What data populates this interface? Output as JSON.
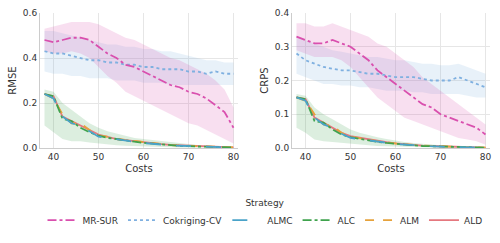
{
  "chart_data": [
    {
      "type": "line",
      "x_label": "Costs",
      "y_label": "RMSE",
      "legend": "bottom",
      "legend_title": "Strategy",
      "grid": true,
      "x": [
        38,
        40,
        42,
        44,
        46,
        48,
        50,
        52,
        54,
        56,
        58,
        60,
        62,
        64,
        66,
        68,
        70,
        72,
        74,
        76,
        78,
        80
      ],
      "xlim": [
        37,
        81
      ],
      "xticks": [
        40,
        50,
        60,
        70,
        80
      ],
      "ylim": [
        0,
        0.6
      ],
      "yticks": [
        {
          "value": 0,
          "label": "0.0"
        },
        0.2,
        0.4,
        0.6
      ],
      "series": [
        {
          "name": "ALD",
          "color": "#e5787f",
          "line_style": "solid",
          "values": [
            0.24,
            0.23,
            0.14,
            0.12,
            0.1,
            0.08,
            0.06,
            0.05,
            0.04,
            0.035,
            0.03,
            0.025,
            0.02,
            0.017,
            0.014,
            0.012,
            0.01,
            0.008,
            0.006,
            0.005,
            0.004,
            0.003
          ]
        },
        {
          "name": "ALM",
          "color": "#e6a23c",
          "line_style": "dash",
          "values": [
            0.24,
            0.22,
            0.15,
            0.11,
            0.11,
            0.08,
            0.055,
            0.05,
            0.04,
            0.035,
            0.03,
            0.025,
            0.02,
            0.016,
            0.013,
            0.011,
            0.009,
            0.007,
            0.006,
            0.005,
            0.004,
            0.003
          ]
        },
        {
          "name": "ALC",
          "color": "#3fa34d",
          "line_style": "dashdot",
          "values": [
            0.24,
            0.23,
            0.13,
            0.12,
            0.09,
            0.07,
            0.055,
            0.045,
            0.04,
            0.033,
            0.028,
            0.023,
            0.019,
            0.015,
            0.012,
            0.01,
            0.008,
            0.007,
            0.005,
            0.004,
            0.003,
            0.002
          ],
          "lower": [
            0.1,
            0.07,
            0.04,
            0.03,
            0.03,
            0.025,
            0.02,
            0.015,
            0.012,
            0.01,
            0.008,
            0.006,
            0.005,
            0.004,
            0.003,
            0.002,
            0.002,
            0.001,
            0.001,
            0.001,
            0.0,
            0.0
          ],
          "upper": [
            0.26,
            0.25,
            0.2,
            0.17,
            0.14,
            0.11,
            0.09,
            0.075,
            0.065,
            0.055,
            0.045,
            0.04,
            0.035,
            0.03,
            0.025,
            0.02,
            0.016,
            0.013,
            0.01,
            0.008,
            0.006,
            0.005
          ]
        },
        {
          "name": "ALMC",
          "color": "#4aa3c9",
          "line_style": "longdash",
          "values": [
            0.24,
            0.22,
            0.14,
            0.11,
            0.1,
            0.075,
            0.05,
            0.045,
            0.038,
            0.032,
            0.027,
            0.022,
            0.018,
            0.015,
            0.012,
            0.01,
            0.008,
            0.006,
            0.005,
            0.004,
            0.003,
            0.002
          ]
        },
        {
          "name": "Cokriging-CV",
          "color": "#7fb0e0",
          "line_style": "dot",
          "values": [
            0.43,
            0.42,
            0.42,
            0.41,
            0.4,
            0.39,
            0.39,
            0.38,
            0.38,
            0.37,
            0.37,
            0.36,
            0.36,
            0.35,
            0.35,
            0.35,
            0.34,
            0.34,
            0.33,
            0.34,
            0.33,
            0.33
          ],
          "lower": [
            0.34,
            0.33,
            0.33,
            0.32,
            0.32,
            0.31,
            0.31,
            0.31,
            0.3,
            0.3,
            0.3,
            0.29,
            0.29,
            0.29,
            0.28,
            0.28,
            0.28,
            0.28,
            0.28,
            0.28,
            0.28,
            0.28
          ],
          "upper": [
            0.52,
            0.52,
            0.51,
            0.5,
            0.49,
            0.48,
            0.47,
            0.46,
            0.46,
            0.45,
            0.45,
            0.44,
            0.44,
            0.43,
            0.43,
            0.42,
            0.41,
            0.4,
            0.39,
            0.39,
            0.38,
            0.38
          ]
        },
        {
          "name": "MR-SUR",
          "color": "#d94fae",
          "line_style": "dashdot",
          "values": [
            0.48,
            0.47,
            0.48,
            0.49,
            0.49,
            0.48,
            0.45,
            0.42,
            0.4,
            0.37,
            0.36,
            0.34,
            0.32,
            0.3,
            0.28,
            0.27,
            0.25,
            0.24,
            0.22,
            0.19,
            0.16,
            0.09
          ],
          "lower": [
            0.43,
            0.42,
            0.42,
            0.43,
            0.42,
            0.4,
            0.36,
            0.32,
            0.29,
            0.25,
            0.23,
            0.21,
            0.19,
            0.17,
            0.15,
            0.13,
            0.11,
            0.1,
            0.08,
            0.06,
            0.04,
            0.02
          ],
          "upper": [
            0.53,
            0.54,
            0.55,
            0.56,
            0.56,
            0.56,
            0.55,
            0.53,
            0.51,
            0.49,
            0.48,
            0.46,
            0.44,
            0.42,
            0.4,
            0.39,
            0.37,
            0.35,
            0.33,
            0.3,
            0.26,
            0.18
          ]
        }
      ]
    },
    {
      "type": "line",
      "x_label": "Costs",
      "y_label": "CRPS",
      "grid": true,
      "x": [
        38,
        40,
        42,
        44,
        46,
        48,
        50,
        52,
        54,
        56,
        58,
        60,
        62,
        64,
        66,
        68,
        70,
        72,
        74,
        76,
        78,
        80
      ],
      "xlim": [
        37,
        81
      ],
      "xticks": [
        40,
        50,
        60,
        70,
        80
      ],
      "ylim": [
        0,
        0.4
      ],
      "yticks": [
        {
          "value": 0,
          "label": "0.0"
        },
        0.1,
        0.2,
        0.3,
        0.4
      ],
      "series": [
        {
          "name": "ALD",
          "color": "#e5787f",
          "line_style": "solid",
          "values": [
            0.15,
            0.145,
            0.09,
            0.075,
            0.06,
            0.045,
            0.035,
            0.03,
            0.025,
            0.02,
            0.017,
            0.014,
            0.011,
            0.009,
            0.007,
            0.006,
            0.005,
            0.004,
            0.003,
            0.002,
            0.002,
            0.001
          ]
        },
        {
          "name": "ALM",
          "color": "#e6a23c",
          "line_style": "dash",
          "values": [
            0.15,
            0.14,
            0.1,
            0.07,
            0.065,
            0.045,
            0.033,
            0.028,
            0.024,
            0.02,
            0.016,
            0.013,
            0.011,
            0.009,
            0.007,
            0.006,
            0.005,
            0.004,
            0.003,
            0.002,
            0.002,
            0.001
          ]
        },
        {
          "name": "ALC",
          "color": "#3fa34d",
          "line_style": "dashdot",
          "values": [
            0.15,
            0.145,
            0.08,
            0.075,
            0.055,
            0.04,
            0.032,
            0.027,
            0.022,
            0.018,
            0.015,
            0.012,
            0.01,
            0.008,
            0.006,
            0.005,
            0.004,
            0.003,
            0.002,
            0.002,
            0.001,
            0.001
          ],
          "lower": [
            0.06,
            0.045,
            0.025,
            0.02,
            0.018,
            0.015,
            0.012,
            0.01,
            0.008,
            0.006,
            0.005,
            0.004,
            0.003,
            0.002,
            0.002,
            0.001,
            0.001,
            0.001,
            0.0,
            0.0,
            0.0,
            0.0
          ],
          "upper": [
            0.16,
            0.155,
            0.12,
            0.1,
            0.085,
            0.07,
            0.055,
            0.045,
            0.038,
            0.032,
            0.027,
            0.022,
            0.018,
            0.015,
            0.012,
            0.01,
            0.008,
            0.006,
            0.005,
            0.004,
            0.003,
            0.003
          ]
        },
        {
          "name": "ALMC",
          "color": "#4aa3c9",
          "line_style": "longdash",
          "values": [
            0.15,
            0.14,
            0.09,
            0.07,
            0.06,
            0.042,
            0.03,
            0.026,
            0.022,
            0.018,
            0.015,
            0.012,
            0.01,
            0.008,
            0.006,
            0.005,
            0.004,
            0.003,
            0.002,
            0.002,
            0.001,
            0.001
          ]
        },
        {
          "name": "Cokriging-CV",
          "color": "#7fb0e0",
          "line_style": "dot",
          "values": [
            0.28,
            0.26,
            0.25,
            0.24,
            0.235,
            0.23,
            0.23,
            0.225,
            0.22,
            0.22,
            0.215,
            0.21,
            0.21,
            0.21,
            0.205,
            0.2,
            0.2,
            0.2,
            0.21,
            0.2,
            0.19,
            0.18
          ],
          "lower": [
            0.22,
            0.21,
            0.2,
            0.19,
            0.19,
            0.185,
            0.185,
            0.18,
            0.18,
            0.175,
            0.17,
            0.17,
            0.17,
            0.165,
            0.165,
            0.16,
            0.16,
            0.16,
            0.16,
            0.155,
            0.15,
            0.15
          ],
          "upper": [
            0.33,
            0.32,
            0.31,
            0.3,
            0.29,
            0.285,
            0.28,
            0.275,
            0.27,
            0.27,
            0.265,
            0.26,
            0.26,
            0.255,
            0.25,
            0.25,
            0.245,
            0.245,
            0.25,
            0.24,
            0.23,
            0.22
          ]
        },
        {
          "name": "MR-SUR",
          "color": "#d94fae",
          "line_style": "dashdot",
          "values": [
            0.33,
            0.32,
            0.31,
            0.31,
            0.32,
            0.31,
            0.3,
            0.28,
            0.26,
            0.23,
            0.21,
            0.19,
            0.17,
            0.15,
            0.13,
            0.12,
            0.1,
            0.09,
            0.08,
            0.07,
            0.06,
            0.04
          ],
          "lower": [
            0.29,
            0.28,
            0.27,
            0.27,
            0.27,
            0.26,
            0.24,
            0.21,
            0.18,
            0.15,
            0.13,
            0.11,
            0.09,
            0.08,
            0.07,
            0.06,
            0.05,
            0.04,
            0.03,
            0.025,
            0.02,
            0.01
          ],
          "upper": [
            0.37,
            0.37,
            0.36,
            0.36,
            0.37,
            0.36,
            0.35,
            0.34,
            0.33,
            0.31,
            0.3,
            0.28,
            0.26,
            0.24,
            0.21,
            0.19,
            0.17,
            0.15,
            0.13,
            0.11,
            0.09,
            0.07
          ]
        }
      ]
    }
  ]
}
